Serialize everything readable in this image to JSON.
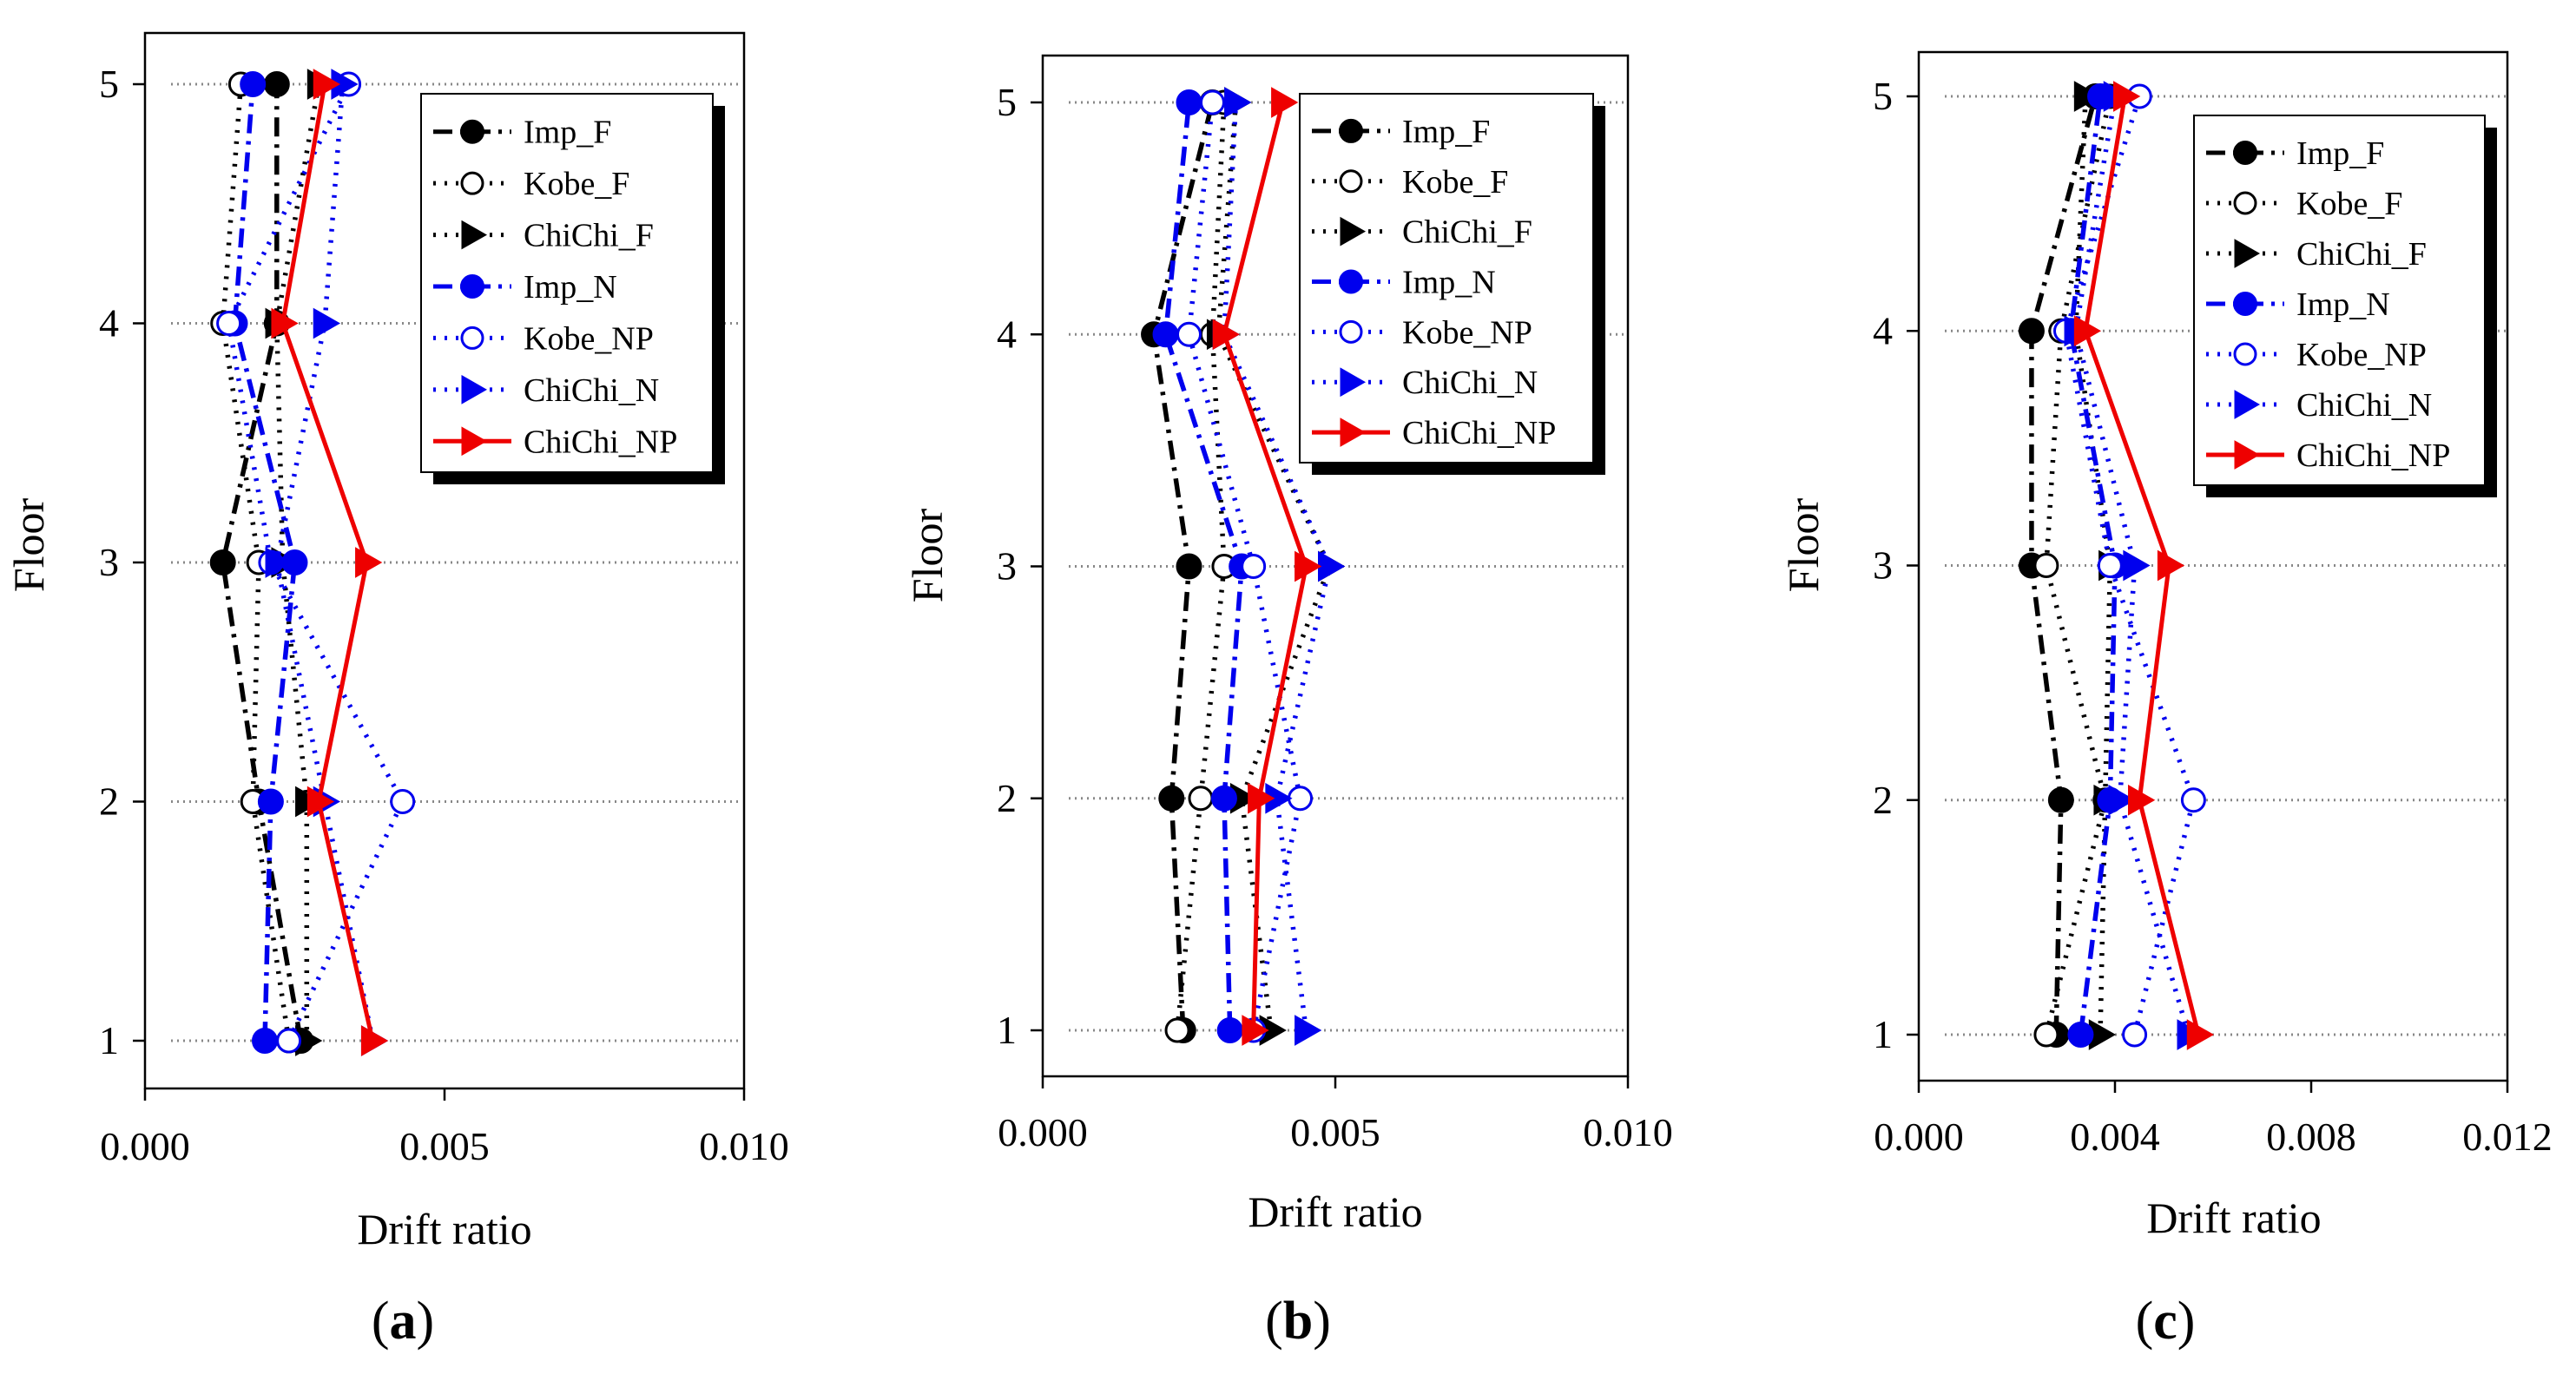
{
  "chart_data": [
    {
      "type": "line",
      "panel_label": "(a)",
      "panel_letter": "a",
      "xlabel": "Drift ratio",
      "ylabel": "Floor",
      "xlim": [
        0,
        0.01
      ],
      "ylim": [
        1,
        5
      ],
      "xticks": [
        0.0,
        0.005,
        0.01
      ],
      "xtick_labels": [
        "0.000",
        "0.005",
        "0.010"
      ],
      "yticks": [
        1,
        2,
        3,
        4,
        5
      ],
      "ytick_labels": [
        "1",
        "2",
        "3",
        "4",
        "5"
      ],
      "grid": "horizontal dotted",
      "legend_position": "top-right",
      "series": [
        {
          "name": "Imp_F",
          "color": "#000000",
          "dash": "dashdot",
          "marker": "filled-circle",
          "floors": [
            1,
            2,
            3,
            4,
            5
          ],
          "values": [
            0.0026,
            0.0019,
            0.0013,
            0.0022,
            0.0022
          ]
        },
        {
          "name": "Kobe_F",
          "color": "#000000",
          "dash": "dotted",
          "marker": "open-circle",
          "floors": [
            1,
            2,
            3,
            4,
            5
          ],
          "values": [
            0.0024,
            0.0018,
            0.0019,
            0.0013,
            0.0016
          ]
        },
        {
          "name": "ChiChi_F",
          "color": "#000000",
          "dash": "dotted",
          "marker": "filled-triangle",
          "floors": [
            1,
            2,
            3,
            4,
            5
          ],
          "values": [
            0.0027,
            0.0027,
            0.0023,
            0.0022,
            0.0029
          ]
        },
        {
          "name": "Imp_N",
          "color": "#0000ee",
          "dash": "dashdot",
          "marker": "filled-circle",
          "floors": [
            1,
            2,
            3,
            4,
            5
          ],
          "values": [
            0.002,
            0.0021,
            0.0025,
            0.0015,
            0.0018
          ]
        },
        {
          "name": "Kobe_NP",
          "color": "#0000ee",
          "dash": "dotted",
          "marker": "open-circle",
          "floors": [
            1,
            2,
            3,
            4,
            5
          ],
          "values": [
            0.0024,
            0.0043,
            0.0021,
            0.0014,
            0.0034
          ]
        },
        {
          "name": "ChiChi_N",
          "color": "#0000ee",
          "dash": "dotted",
          "marker": "filled-triangle",
          "floors": [
            1,
            2,
            3,
            4,
            5
          ],
          "values": [
            0.0038,
            0.003,
            0.0022,
            0.003,
            0.0033
          ]
        },
        {
          "name": "ChiChi_NP",
          "color": "#ee0000",
          "dash": "solid",
          "marker": "filled-triangle",
          "floors": [
            1,
            2,
            3,
            4,
            5
          ],
          "values": [
            0.0038,
            0.0029,
            0.0037,
            0.0023,
            0.003
          ]
        }
      ]
    },
    {
      "type": "line",
      "panel_label": "(b)",
      "panel_letter": "b",
      "xlabel": "Drift ratio",
      "ylabel": "Floor",
      "xlim": [
        0,
        0.01
      ],
      "ylim": [
        1,
        5
      ],
      "xticks": [
        0.0,
        0.005,
        0.01
      ],
      "xtick_labels": [
        "0.000",
        "0.005",
        "0.010"
      ],
      "yticks": [
        1,
        2,
        3,
        4,
        5
      ],
      "ytick_labels": [
        "1",
        "2",
        "3",
        "4",
        "5"
      ],
      "grid": "horizontal dotted",
      "legend_position": "top-right",
      "series": [
        {
          "name": "Imp_F",
          "color": "#000000",
          "dash": "dashdot",
          "marker": "filled-circle",
          "floors": [
            1,
            2,
            3,
            4,
            5
          ],
          "values": [
            0.0024,
            0.0022,
            0.0025,
            0.0019,
            0.0029
          ]
        },
        {
          "name": "Kobe_F",
          "color": "#000000",
          "dash": "dotted",
          "marker": "open-circle",
          "floors": [
            1,
            2,
            3,
            4,
            5
          ],
          "values": [
            0.0023,
            0.0027,
            0.0031,
            0.0029,
            0.0031
          ]
        },
        {
          "name": "ChiChi_F",
          "color": "#000000",
          "dash": "dotted",
          "marker": "filled-triangle",
          "floors": [
            1,
            2,
            3,
            4,
            5
          ],
          "values": [
            0.0039,
            0.0034,
            0.0049,
            0.003,
            0.0033
          ]
        },
        {
          "name": "Imp_N",
          "color": "#0000ee",
          "dash": "dashdot",
          "marker": "filled-circle",
          "floors": [
            1,
            2,
            3,
            4,
            5
          ],
          "values": [
            0.0032,
            0.0031,
            0.0034,
            0.0021,
            0.0025
          ]
        },
        {
          "name": "Kobe_NP",
          "color": "#0000ee",
          "dash": "dotted",
          "marker": "open-circle",
          "floors": [
            1,
            2,
            3,
            4,
            5
          ],
          "values": [
            0.0036,
            0.0044,
            0.0036,
            0.0025,
            0.0029
          ]
        },
        {
          "name": "ChiChi_N",
          "color": "#0000ee",
          "dash": "dotted",
          "marker": "filled-triangle",
          "floors": [
            1,
            2,
            3,
            4,
            5
          ],
          "values": [
            0.0045,
            0.004,
            0.0049,
            0.0031,
            0.0033
          ]
        },
        {
          "name": "ChiChi_NP",
          "color": "#ee0000",
          "dash": "solid",
          "marker": "filled-triangle",
          "floors": [
            1,
            2,
            3,
            4,
            5
          ],
          "values": [
            0.0036,
            0.0037,
            0.0045,
            0.0031,
            0.0041
          ]
        }
      ]
    },
    {
      "type": "line",
      "panel_label": "(c)",
      "panel_letter": "c",
      "xlabel": "Drift ratio",
      "ylabel": "Floor",
      "xlim": [
        0,
        0.012
      ],
      "ylim": [
        1,
        5
      ],
      "xticks": [
        0.0,
        0.004,
        0.008,
        0.012
      ],
      "xtick_labels": [
        "0.000",
        "0.004",
        "0.008",
        "0.012"
      ],
      "yticks": [
        1,
        2,
        3,
        4,
        5
      ],
      "ytick_labels": [
        "1",
        "2",
        "3",
        "4",
        "5"
      ],
      "grid": "horizontal dotted",
      "legend_position": "top-right",
      "series": [
        {
          "name": "Imp_F",
          "color": "#000000",
          "dash": "dashdot",
          "marker": "filled-circle",
          "floors": [
            1,
            2,
            3,
            4,
            5
          ],
          "values": [
            0.0028,
            0.0029,
            0.0023,
            0.0023,
            0.0036
          ]
        },
        {
          "name": "Kobe_F",
          "color": "#000000",
          "dash": "dotted",
          "marker": "open-circle",
          "floors": [
            1,
            2,
            3,
            4,
            5
          ],
          "values": [
            0.0026,
            0.0038,
            0.0026,
            0.0029,
            0.0039
          ]
        },
        {
          "name": "ChiChi_F",
          "color": "#000000",
          "dash": "dotted",
          "marker": "filled-triangle",
          "floors": [
            1,
            2,
            3,
            4,
            5
          ],
          "values": [
            0.0037,
            0.0038,
            0.0039,
            0.0032,
            0.0034
          ]
        },
        {
          "name": "Imp_N",
          "color": "#0000ee",
          "dash": "dashdot",
          "marker": "filled-circle",
          "floors": [
            1,
            2,
            3,
            4,
            5
          ],
          "values": [
            0.0033,
            0.0039,
            0.004,
            0.0031,
            0.0037
          ]
        },
        {
          "name": "Kobe_NP",
          "color": "#0000ee",
          "dash": "dotted",
          "marker": "open-circle",
          "floors": [
            1,
            2,
            3,
            4,
            5
          ],
          "values": [
            0.0044,
            0.0056,
            0.0039,
            0.003,
            0.0045
          ]
        },
        {
          "name": "ChiChi_N",
          "color": "#0000ee",
          "dash": "dotted",
          "marker": "filled-triangle",
          "floors": [
            1,
            2,
            3,
            4,
            5
          ],
          "values": [
            0.0055,
            0.0041,
            0.0044,
            0.0032,
            0.004
          ]
        },
        {
          "name": "ChiChi_NP",
          "color": "#ee0000",
          "dash": "solid",
          "marker": "filled-triangle",
          "floors": [
            1,
            2,
            3,
            4,
            5
          ],
          "values": [
            0.0057,
            0.0045,
            0.0051,
            0.0034,
            0.0042
          ]
        }
      ]
    }
  ]
}
